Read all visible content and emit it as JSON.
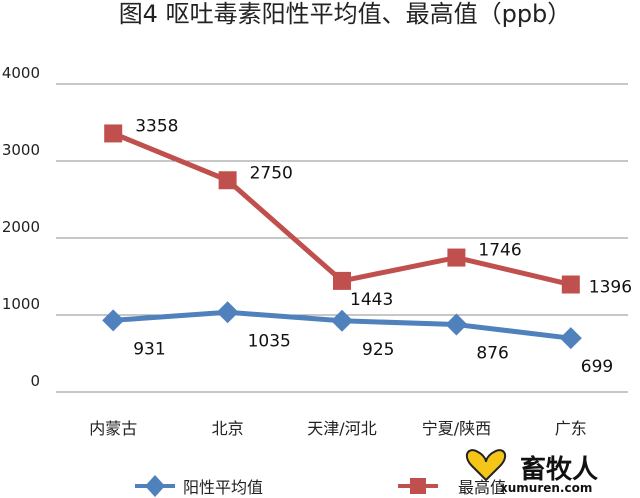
{
  "chart_data": {
    "type": "line",
    "title": "图4  呕吐毒素阳性平均值、最高值（ppb）",
    "categories": [
      "内蒙古",
      "北京",
      "天津/河北",
      "宁夏/陕西",
      "广东"
    ],
    "yticks": [
      "0",
      "1000",
      "2000",
      "3000",
      "4000"
    ],
    "ylim": [
      0,
      4000
    ],
    "grid": true,
    "legend_position": "bottom",
    "series": [
      {
        "name": "阳性平均值",
        "values": [
          931,
          1035,
          925,
          876,
          699
        ],
        "labels": [
          "931",
          "1035",
          "925",
          "876",
          "699"
        ],
        "color": "#4F81BD",
        "marker": "diamond"
      },
      {
        "name": "最高值",
        "values": [
          3358,
          2750,
          1443,
          1746,
          1396
        ],
        "labels": [
          "3358",
          "2750",
          "1443",
          "1746",
          "1396"
        ],
        "color": "#C0504D",
        "marker": "square"
      }
    ]
  },
  "watermark": {
    "brand": "畜牧人",
    "url": "xumuren.com"
  }
}
